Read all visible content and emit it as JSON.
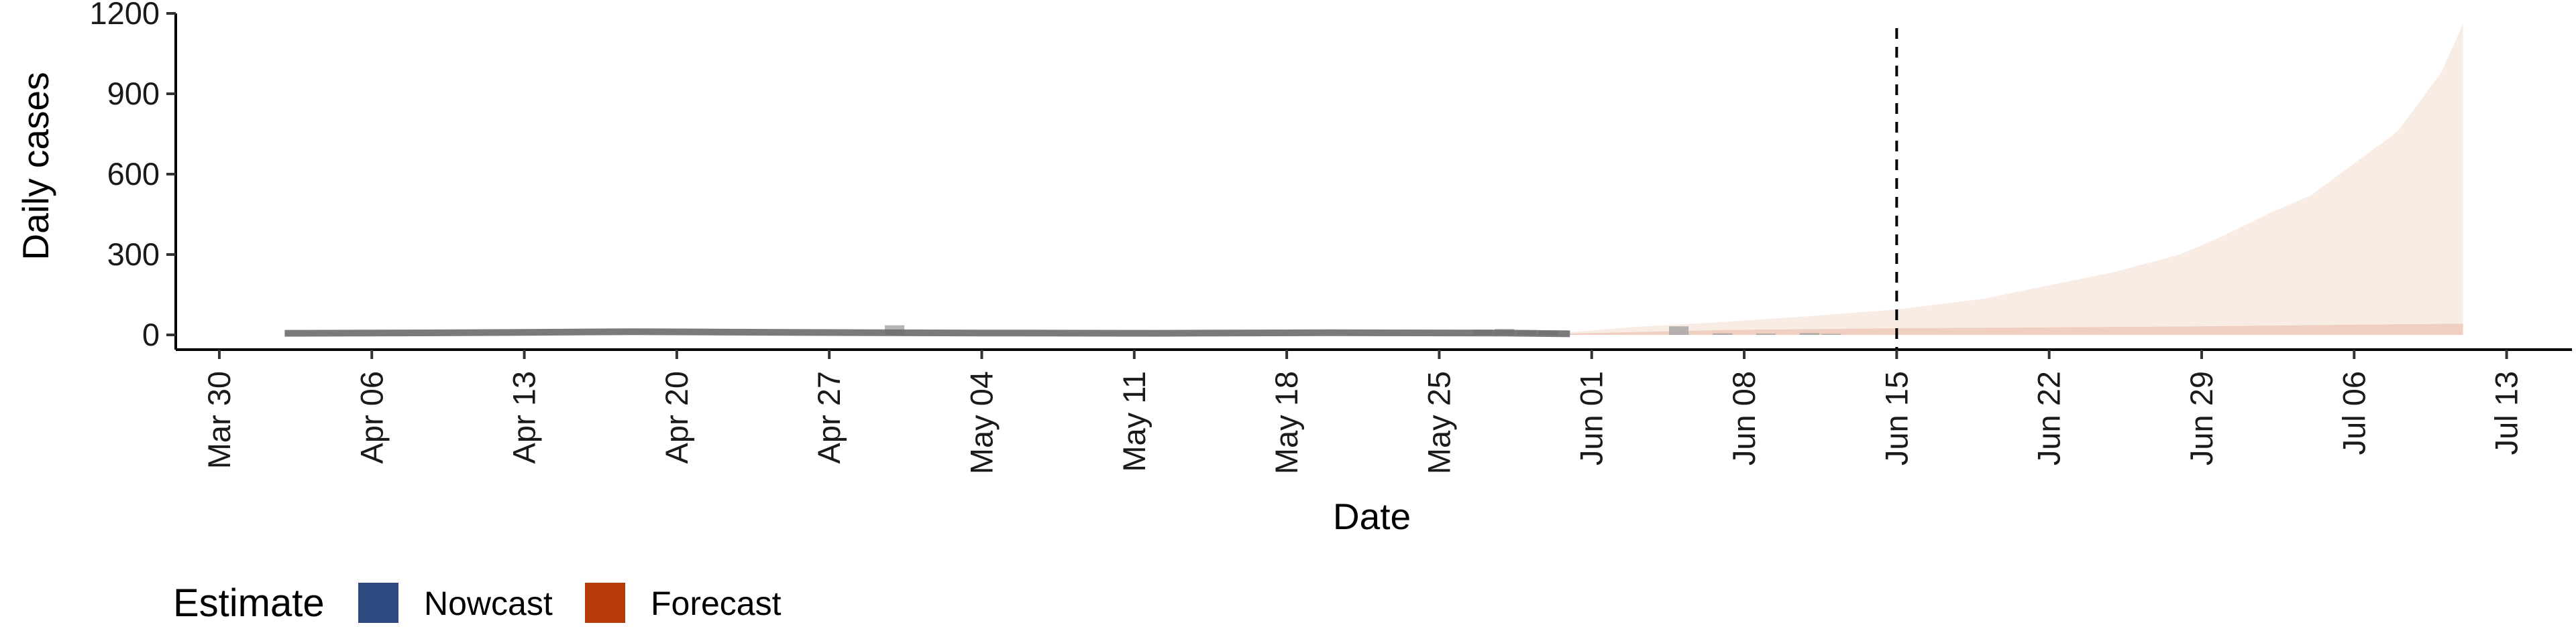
{
  "chart_data": {
    "type": "area",
    "title": "",
    "xlabel": "Date",
    "ylabel": "Daily cases",
    "x_tick_labels": [
      "Mar 30",
      "Apr 06",
      "Apr 13",
      "Apr 20",
      "Apr 27",
      "May 04",
      "May 11",
      "May 18",
      "May 25",
      "Jun 01",
      "Jun 08",
      "Jun 15",
      "Jun 22",
      "Jun 29",
      "Jul 06",
      "Jul 13"
    ],
    "x_ticks": [
      "2020-03-30",
      "2020-04-06",
      "2020-04-13",
      "2020-04-20",
      "2020-04-27",
      "2020-05-04",
      "2020-05-11",
      "2020-05-18",
      "2020-05-25",
      "2020-06-01",
      "2020-06-08",
      "2020-06-15",
      "2020-06-22",
      "2020-06-29",
      "2020-07-06",
      "2020-07-13"
    ],
    "xlim": [
      "2020-03-28",
      "2020-07-16"
    ],
    "y_ticks": [
      0,
      300,
      600,
      900,
      1200
    ],
    "ylim": [
      -55,
      1200
    ],
    "grid": false,
    "legend": {
      "title": "Estimate",
      "position": "bottom-left",
      "entries": [
        {
          "label": "Nowcast",
          "color": "#2f4a80"
        },
        {
          "label": "Forecast",
          "color": "#b53a08"
        }
      ]
    },
    "annotations": [
      {
        "type": "vertical-dashed-line",
        "x": "2020-06-15"
      }
    ],
    "series": [
      {
        "kind": "observed-cases-line",
        "color": "#6b6b6b",
        "x": [
          "2020-04-02",
          "2020-04-10",
          "2020-04-18",
          "2020-04-26",
          "2020-05-04",
          "2020-05-12",
          "2020-05-20",
          "2020-05-28",
          "2020-05-31"
        ],
        "values": [
          6,
          8,
          12,
          9,
          7,
          6,
          8,
          7,
          4
        ]
      },
      {
        "kind": "forecast-outer-interval",
        "color": "#f8ece5",
        "x": [
          "2020-05-31",
          "2020-06-03",
          "2020-06-07",
          "2020-06-11",
          "2020-06-15",
          "2020-06-19",
          "2020-06-22",
          "2020-06-25",
          "2020-06-28",
          "2020-06-30",
          "2020-07-02",
          "2020-07-04",
          "2020-07-06",
          "2020-07-08",
          "2020-07-10",
          "2020-07-11"
        ],
        "lower": [
          0,
          0,
          0,
          0,
          0,
          0,
          0,
          0,
          0,
          0,
          0,
          0,
          0,
          0,
          0,
          0
        ],
        "upper": [
          10,
          30,
          48,
          70,
          95,
          135,
          185,
          235,
          300,
          370,
          450,
          520,
          640,
          760,
          980,
          1160
        ]
      },
      {
        "kind": "forecast-inner-interval",
        "color": "#efd0c0",
        "x": [
          "2020-05-31",
          "2020-06-07",
          "2020-06-15",
          "2020-06-22",
          "2020-06-29",
          "2020-07-06",
          "2020-07-11"
        ],
        "lower": [
          0,
          0,
          0,
          0,
          0,
          0,
          0
        ],
        "upper": [
          5,
          18,
          25,
          28,
          32,
          38,
          42
        ]
      },
      {
        "kind": "reported-cases-bars",
        "color": "#a8a8a8",
        "x": [
          "2020-04-30",
          "2020-05-27",
          "2020-05-28",
          "2020-05-29",
          "2020-05-30",
          "2020-06-05",
          "2020-06-07",
          "2020-06-09",
          "2020-06-11",
          "2020-06-12"
        ],
        "values": [
          36,
          20,
          22,
          18,
          14,
          32,
          6,
          5,
          7,
          4
        ]
      }
    ]
  }
}
